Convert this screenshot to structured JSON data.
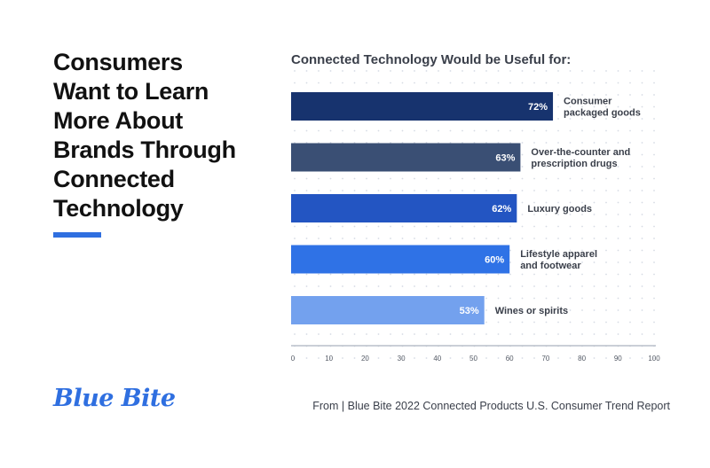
{
  "headline": {
    "lines": [
      "Consumers",
      "Want to Learn",
      "More About",
      "Brands Through",
      "Connected",
      "Technology"
    ]
  },
  "accent_color": "#2f6fe0",
  "chart_data": {
    "type": "bar",
    "orientation": "horizontal",
    "title": "Connected Technology Would be Useful for:",
    "categories": [
      [
        "Consumer",
        "packaged goods"
      ],
      [
        "Over-the-counter and",
        "prescription drugs"
      ],
      [
        "Luxury goods"
      ],
      [
        "Lifestyle apparel",
        "and footwear"
      ],
      [
        "Wines or spirits"
      ]
    ],
    "values": [
      72,
      63,
      62,
      60,
      53
    ],
    "value_labels": [
      "72%",
      "63%",
      "62%",
      "60%",
      "53%"
    ],
    "bar_colors": [
      "#17336e",
      "#3a4f74",
      "#2355c2",
      "#2f72e6",
      "#73a1ee"
    ],
    "xlim": [
      0,
      100
    ],
    "xticks": [
      0,
      10,
      20,
      30,
      40,
      50,
      60,
      70,
      80,
      90,
      100
    ],
    "grid": "dotted"
  },
  "logo": {
    "text": "Blue Bite"
  },
  "source": {
    "text": "From | Blue Bite 2022 Connected Products U.S. Consumer Trend Report"
  }
}
